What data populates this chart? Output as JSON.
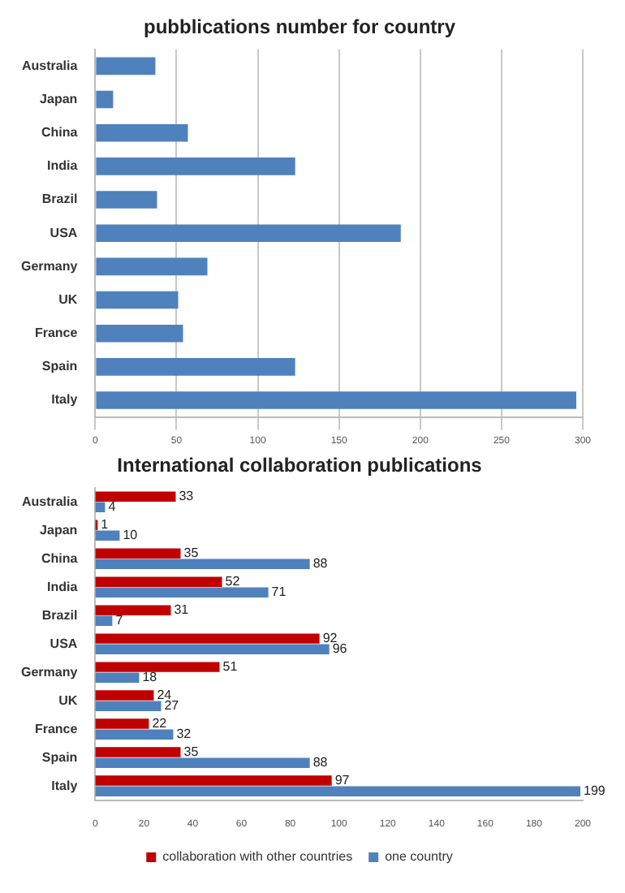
{
  "chart_data": [
    {
      "type": "bar",
      "orientation": "horizontal",
      "title": "pubblications number for country",
      "categories": [
        "Australia",
        "Japan",
        "China",
        "India",
        "Brazil",
        "USA",
        "Germany",
        "UK",
        "France",
        "Spain",
        "Italy"
      ],
      "values": [
        37,
        11,
        57,
        123,
        38,
        188,
        69,
        51,
        54,
        123,
        296
      ],
      "color": "#4f81bd",
      "xlim": [
        0,
        300
      ],
      "xticks": [
        0,
        50,
        100,
        150,
        200,
        250,
        300
      ],
      "grid": "x",
      "legend": false
    },
    {
      "type": "bar",
      "orientation": "horizontal",
      "title": "International collaboration publications",
      "categories": [
        "Australia",
        "Japan",
        "China",
        "India",
        "Brazil",
        "USA",
        "Germany",
        "UK",
        "France",
        "Spain",
        "Italy"
      ],
      "series": [
        {
          "name": "collaboration with other countries",
          "color": "#c00000",
          "values": [
            33,
            1,
            35,
            52,
            31,
            92,
            51,
            24,
            22,
            35,
            97
          ]
        },
        {
          "name": "one country",
          "color": "#4f81bd",
          "values": [
            4,
            10,
            88,
            71,
            7,
            96,
            18,
            27,
            32,
            88,
            199
          ]
        }
      ],
      "xlim": [
        0,
        200
      ],
      "xticks": [
        0,
        20,
        40,
        60,
        80,
        100,
        120,
        140,
        160,
        180,
        200
      ],
      "data_labels": true,
      "legend": "bottom"
    }
  ]
}
